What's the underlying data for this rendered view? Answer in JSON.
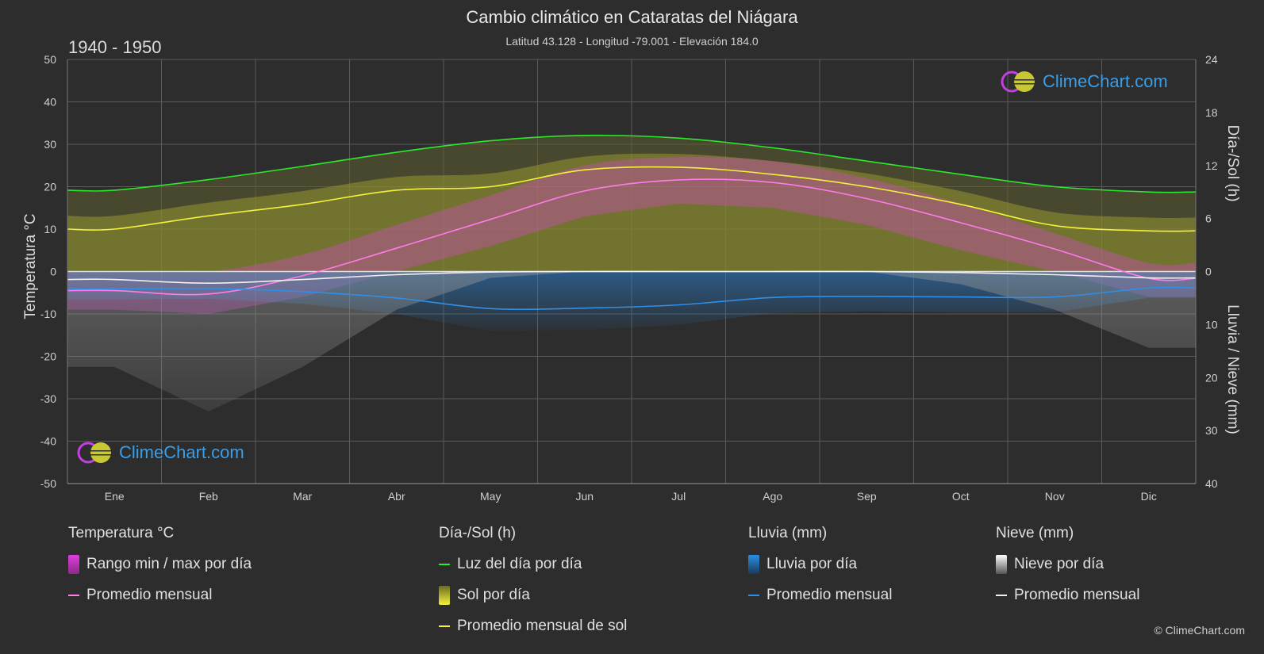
{
  "header": {
    "title": "Cambio climático en Cataratas del Niágara",
    "subtitle": "Latitud 43.128 - Longitud -79.001 - Elevación 184.0",
    "period": "1940 - 1950"
  },
  "brand": {
    "name": "ClimeChart.com"
  },
  "copyright": "© ClimeChart.com",
  "legend": {
    "temperature": {
      "title": "Temperatura °C",
      "range_label": "Rango min / max por día",
      "mean_label": "Promedio mensual"
    },
    "daylight": {
      "title": "Día-/Sol (h)",
      "daylight_label": "Luz del día por día",
      "sun_label": "Sol por día",
      "sun_mean_label": "Promedio mensual de sol"
    },
    "rain": {
      "title": "Lluvia (mm)",
      "rain_label": "Lluvia por día",
      "mean_label": "Promedio mensual"
    },
    "snow": {
      "title": "Nieve (mm)",
      "snow_label": "Nieve por día",
      "mean_label": "Promedio mensual"
    }
  },
  "colors": {
    "background": "#2d2d2d",
    "grid": "#5a5a5a",
    "temp_range": "#e23de0",
    "temp_mean": "#ff7be8",
    "daylight": "#2ee82e",
    "sun": "#c8c832",
    "sun_mean": "#f2f23c",
    "rain": "#2a7fd0",
    "rain_mean": "#2f8fe6",
    "snow": "#b8b8b8",
    "snow_mean": "#f0f0f0"
  },
  "chart_data": {
    "type": "area",
    "categories": [
      "Ene",
      "Feb",
      "Mar",
      "Abr",
      "May",
      "Jun",
      "Jul",
      "Ago",
      "Sep",
      "Oct",
      "Nov",
      "Dic"
    ],
    "axes": {
      "left": {
        "label": "Temperatura °C",
        "min": -50,
        "max": 50,
        "ticks": [
          50,
          40,
          30,
          20,
          10,
          0,
          -10,
          -20,
          -30,
          -40,
          -50
        ]
      },
      "right_top": {
        "label": "Día-/Sol (h)",
        "min": 0,
        "max": 24,
        "ticks": [
          24,
          18,
          12,
          6,
          0
        ]
      },
      "right_bottom": {
        "label": "Lluvia / Nieve (mm)",
        "min": 0,
        "max": 40,
        "ticks": [
          0,
          10,
          20,
          30,
          40
        ]
      }
    },
    "grid": true,
    "series": [
      {
        "name": "Luz del día por día",
        "unit": "h",
        "values": [
          9.2,
          10.4,
          11.9,
          13.5,
          14.8,
          15.4,
          15.1,
          14.0,
          12.5,
          11.0,
          9.6,
          9.0
        ]
      },
      {
        "name": "Promedio mensual de sol",
        "unit": "h",
        "values": [
          4.8,
          6.3,
          7.6,
          9.2,
          9.6,
          11.5,
          11.8,
          11.0,
          9.6,
          7.6,
          5.2,
          4.6
        ]
      },
      {
        "name": "Promedio mensual",
        "kind": "temperature",
        "unit": "°C",
        "values": [
          -4.5,
          -5.3,
          -1.0,
          5.5,
          12.3,
          19.0,
          21.6,
          21.0,
          17.2,
          11.5,
          5.3,
          -1.6
        ]
      },
      {
        "name": "Promedio mensual",
        "kind": "rain",
        "unit": "mm",
        "values": [
          3.3,
          3.2,
          3.8,
          5.0,
          7.0,
          6.9,
          6.3,
          4.9,
          4.7,
          4.8,
          4.8,
          3.1
        ]
      },
      {
        "name": "Promedio mensual",
        "kind": "snow",
        "unit": "mm",
        "values": [
          1.5,
          2.2,
          1.5,
          0.6,
          0.1,
          0.0,
          0.0,
          0.0,
          0.0,
          0.2,
          0.6,
          1.2
        ]
      }
    ],
    "daily_temp_range": {
      "min": [
        -9,
        -10,
        -6,
        0,
        6,
        13,
        16,
        15,
        11,
        5,
        0,
        -6
      ],
      "max": [
        0,
        0,
        4,
        11,
        18,
        25,
        27,
        26,
        22,
        16,
        9,
        2
      ]
    }
  }
}
